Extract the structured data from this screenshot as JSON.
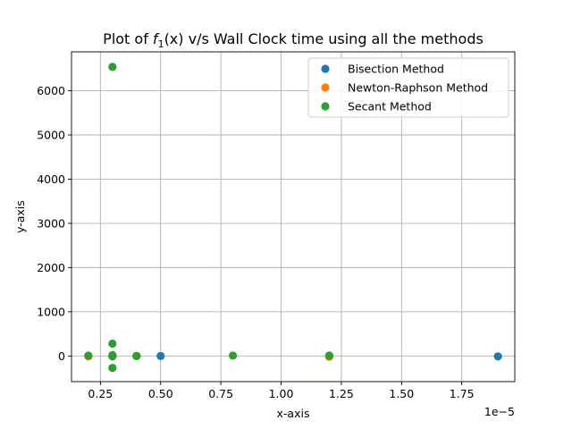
{
  "chart_data": {
    "type": "scatter",
    "title": "Plot of f₁(x) v/s Wall Clock time using all the methods",
    "title_parts": {
      "prefix": "Plot of ",
      "func": "f",
      "subscript": "1",
      "suffix": "(x) v/s Wall Clock time using all the methods"
    },
    "xlabel": "x-axis",
    "ylabel": "y-axis",
    "x_offset_label": "1e−5",
    "x_scale": 1e-05,
    "xlim": [
      0.13,
      1.97
    ],
    "ylim": [
      -580,
      6880
    ],
    "xticks": [
      0.25,
      0.5,
      0.75,
      1.0,
      1.25,
      1.5,
      1.75
    ],
    "xtick_labels": [
      "0.25",
      "0.50",
      "0.75",
      "1.00",
      "1.25",
      "1.50",
      "1.75"
    ],
    "yticks": [
      0,
      1000,
      2000,
      3000,
      4000,
      5000,
      6000
    ],
    "ytick_labels": [
      "0",
      "1000",
      "2000",
      "3000",
      "4000",
      "5000",
      "6000"
    ],
    "grid": true,
    "legend_position": "top-right",
    "series": [
      {
        "name": "Bisection Method",
        "color": "#1f77b4",
        "points": [
          [
            0.2,
            0
          ],
          [
            0.3,
            0
          ],
          [
            0.3,
            0
          ],
          [
            0.4,
            0
          ],
          [
            0.5,
            0
          ],
          [
            1.2,
            0
          ],
          [
            1.9,
            -10
          ]
        ]
      },
      {
        "name": "Newton-Raphson Method",
        "color": "#ff7f0e",
        "points": [
          [
            0.2,
            -10
          ],
          [
            0.3,
            0
          ],
          [
            0.3,
            5
          ],
          [
            0.4,
            0
          ],
          [
            1.2,
            -20
          ]
        ]
      },
      {
        "name": "Secant Method",
        "color": "#2ca02c",
        "points": [
          [
            0.3,
            6540
          ],
          [
            0.3,
            280
          ],
          [
            0.2,
            10
          ],
          [
            0.3,
            20
          ],
          [
            0.3,
            -10
          ],
          [
            0.3,
            -270
          ],
          [
            0.4,
            0
          ],
          [
            0.8,
            10
          ],
          [
            1.2,
            10
          ]
        ]
      }
    ]
  }
}
